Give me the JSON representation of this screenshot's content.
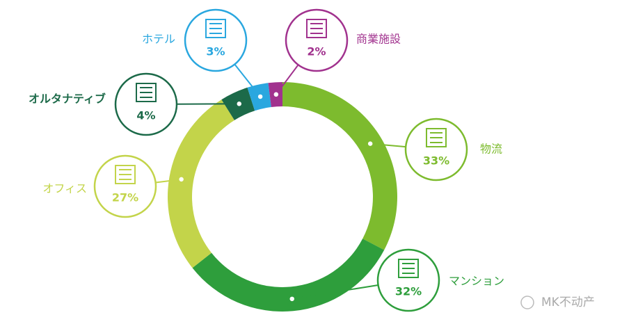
{
  "chart_data": {
    "type": "pie",
    "donut": true,
    "categories": [
      "物流",
      "マンション",
      "オフィス",
      "オルタナティブ",
      "ホテル",
      "商業施設"
    ],
    "values": [
      33,
      32,
      27,
      4,
      3,
      2
    ],
    "value_labels": [
      "33%",
      "32%",
      "27%",
      "4%",
      "3%",
      "2%"
    ],
    "colors": [
      "#7dbb2e",
      "#2e9e3c",
      "#c3d44a",
      "#1c6a49",
      "#2aa7df",
      "#a1328e"
    ],
    "watermark": "MK不动产"
  }
}
